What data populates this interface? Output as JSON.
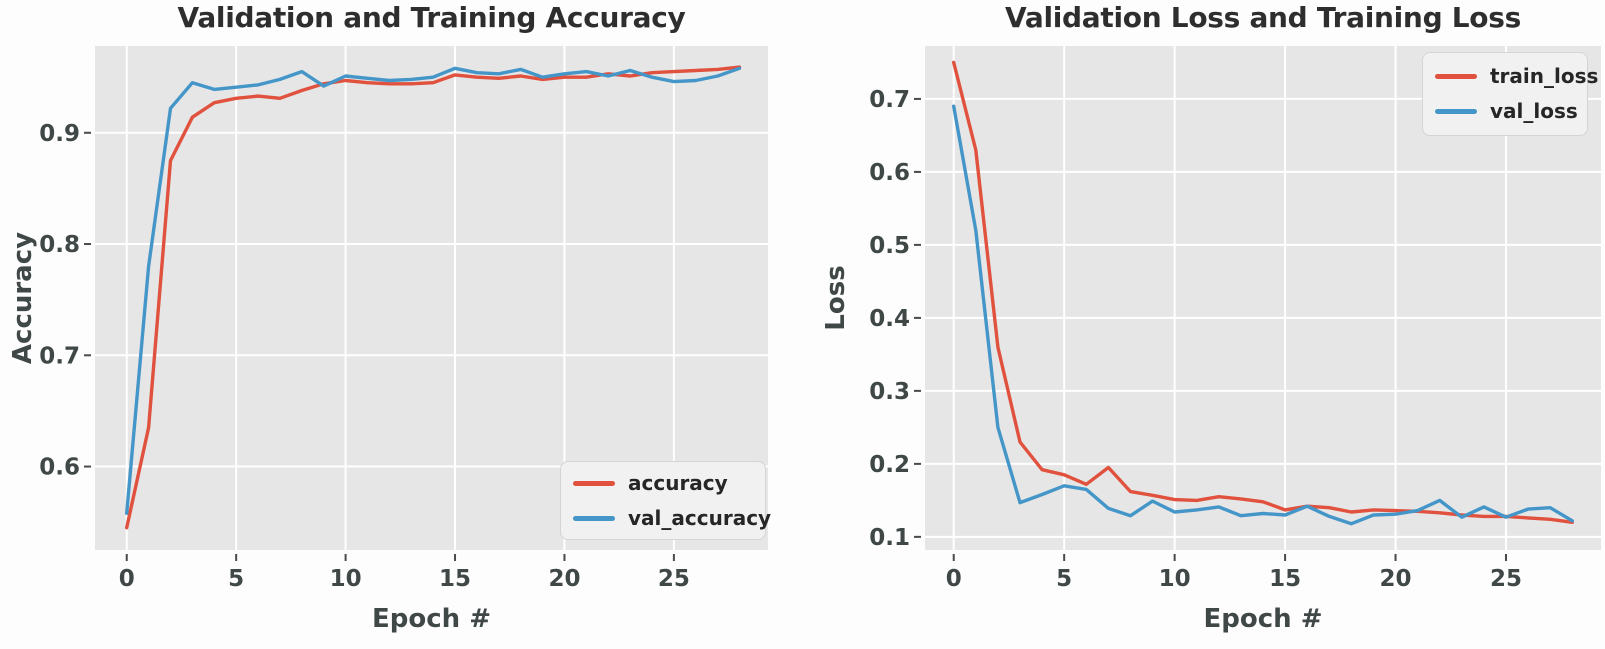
{
  "page": {
    "background": "#fdfdfd"
  },
  "chart_data": [
    {
      "type": "line",
      "title": "Validation and Training Accuracy",
      "xlabel": "Epoch #",
      "ylabel": "Accuracy",
      "x": [
        0,
        1,
        2,
        3,
        4,
        5,
        6,
        7,
        8,
        9,
        10,
        11,
        12,
        13,
        14,
        15,
        16,
        17,
        18,
        19,
        20,
        21,
        22,
        23,
        24,
        25,
        26,
        27,
        28
      ],
      "series": [
        {
          "name": "accuracy",
          "color": "#E0513E",
          "values": [
            0.545,
            0.635,
            0.875,
            0.914,
            0.927,
            0.931,
            0.933,
            0.931,
            0.938,
            0.944,
            0.947,
            0.945,
            0.944,
            0.944,
            0.945,
            0.952,
            0.95,
            0.949,
            0.951,
            0.948,
            0.95,
            0.95,
            0.953,
            0.951,
            0.954,
            0.955,
            0.956,
            0.957,
            0.959
          ]
        },
        {
          "name": "val_accuracy",
          "color": "#4596C8",
          "values": [
            0.558,
            0.78,
            0.922,
            0.945,
            0.939,
            0.941,
            0.943,
            0.948,
            0.955,
            0.942,
            0.951,
            0.949,
            0.947,
            0.948,
            0.95,
            0.958,
            0.954,
            0.953,
            0.957,
            0.95,
            0.953,
            0.955,
            0.951,
            0.956,
            0.95,
            0.946,
            0.947,
            0.951,
            0.958
          ]
        }
      ],
      "xlim": [
        -1.45,
        29.3
      ],
      "ylim": [
        0.525,
        0.978
      ],
      "xticks": [
        "0",
        "5",
        "10",
        "15",
        "20",
        "25"
      ],
      "yticks": [
        "0.6",
        "0.7",
        "0.8",
        "0.9"
      ],
      "legend": {
        "position": "lower right",
        "entries": [
          "accuracy",
          "val_accuracy"
        ]
      },
      "grid": true,
      "plot_bg": "#e6e6e6",
      "grid_color": "#ffffff",
      "tick_color": "#4a4a4a",
      "text_color": "#3f4747"
    },
    {
      "type": "line",
      "title": "Validation Loss and Training Loss",
      "xlabel": "Epoch #",
      "ylabel": "Loss",
      "x": [
        0,
        1,
        2,
        3,
        4,
        5,
        6,
        7,
        8,
        9,
        10,
        11,
        12,
        13,
        14,
        15,
        16,
        17,
        18,
        19,
        20,
        21,
        22,
        23,
        24,
        25,
        26,
        27,
        28
      ],
      "series": [
        {
          "name": "train_loss",
          "color": "#E0513E",
          "values": [
            0.75,
            0.63,
            0.36,
            0.23,
            0.192,
            0.185,
            0.172,
            0.195,
            0.162,
            0.157,
            0.151,
            0.15,
            0.155,
            0.152,
            0.148,
            0.137,
            0.142,
            0.14,
            0.134,
            0.137,
            0.136,
            0.135,
            0.133,
            0.13,
            0.128,
            0.128,
            0.126,
            0.124,
            0.12
          ]
        },
        {
          "name": "val_loss",
          "color": "#4596C8",
          "values": [
            0.69,
            0.52,
            0.25,
            0.147,
            0.158,
            0.17,
            0.165,
            0.139,
            0.129,
            0.149,
            0.134,
            0.137,
            0.141,
            0.129,
            0.132,
            0.13,
            0.142,
            0.128,
            0.118,
            0.13,
            0.131,
            0.136,
            0.15,
            0.127,
            0.141,
            0.127,
            0.138,
            0.14,
            0.122
          ]
        }
      ],
      "xlim": [
        -1.3,
        29.3
      ],
      "ylim": [
        0.082,
        0.7725
      ],
      "xticks": [
        "0",
        "5",
        "10",
        "15",
        "20",
        "25"
      ],
      "yticks": [
        "0.1",
        "0.2",
        "0.3",
        "0.4",
        "0.5",
        "0.6",
        "0.7"
      ],
      "legend": {
        "position": "upper right",
        "entries": [
          "train_loss",
          "val_loss"
        ]
      },
      "grid": true,
      "plot_bg": "#e6e6e6",
      "grid_color": "#ffffff",
      "tick_color": "#4a4a4a",
      "text_color": "#3f4747"
    }
  ]
}
